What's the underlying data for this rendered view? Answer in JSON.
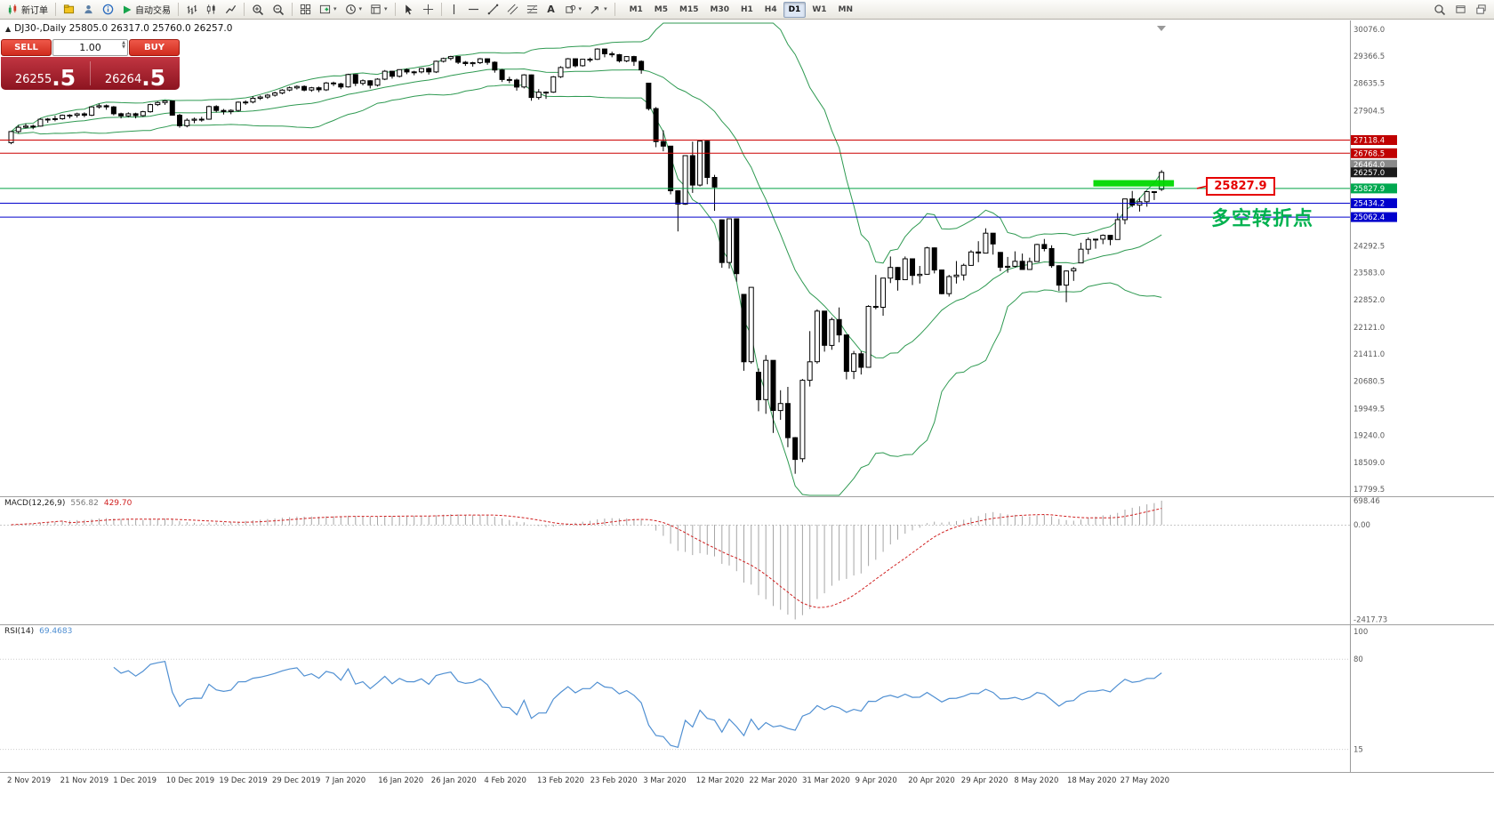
{
  "toolbar": {
    "new_order_label": "新订单",
    "auto_trading_label": "自动交易",
    "timeframes": [
      "M1",
      "M5",
      "M15",
      "M30",
      "H1",
      "H4",
      "D1",
      "W1",
      "MN"
    ],
    "active_timeframe": "D1"
  },
  "icons": {
    "caret": "▾",
    "text_tool": "A",
    "spin_up": "▲",
    "spin_down": "▼",
    "shift_marker": "▾"
  },
  "symbol_header": {
    "icon": "▲",
    "text": "DJ30-,Daily 25805.0 26317.0 25760.0 26257.0"
  },
  "trade_panel": {
    "sell_label": "SELL",
    "buy_label": "BUY",
    "volume": "1.00",
    "sell_price_main": "26255",
    "sell_price_big": ".5",
    "buy_price_main": "26264",
    "buy_price_big": ".5"
  },
  "annotations": {
    "price_callout": "25827.9",
    "pivot_label": "多空转折点"
  },
  "indicators": {
    "macd": {
      "label": "MACD(12,26,9)",
      "value_main": "556.82",
      "value_signal": "429.70",
      "axis_top": "698.46",
      "axis_zero": "0.00",
      "axis_bottom": "-2417.73"
    },
    "rsi": {
      "label": "RSI(14)",
      "value": "69.4683",
      "axis": [
        "100",
        "80",
        "15"
      ]
    }
  },
  "price_axis": {
    "regular": [
      30076.0,
      29366.5,
      28635.5,
      27904.5,
      24292.5,
      23583.0,
      22852.0,
      22121.0,
      21411.0,
      20680.5,
      19949.5,
      19240.0,
      18509.0,
      17799.5
    ],
    "tags": [
      {
        "text": "27118.4",
        "price": 27118.4,
        "bg": "#c00000",
        "fg": "#ffffff"
      },
      {
        "text": "26768.5",
        "price": 26768.5,
        "bg": "#c00000",
        "fg": "#ffffff"
      },
      {
        "text": "26464.0",
        "price": 26464.0,
        "bg": "#8a8a8a",
        "fg": "#ffffff"
      },
      {
        "text": "26257.0",
        "price": 26257.0,
        "bg": "#1a1a1a",
        "fg": "#ffffff"
      },
      {
        "text": "25827.9",
        "price": 25827.9,
        "bg": "#00a84f",
        "fg": "#ffffff"
      },
      {
        "text": "25434.2",
        "price": 25434.2,
        "bg": "#0000cc",
        "fg": "#ffffff"
      },
      {
        "text": "25062.4",
        "price": 25062.4,
        "bg": "#0000cc",
        "fg": "#ffffff"
      }
    ]
  },
  "levels": [
    {
      "price": 27118.4,
      "color": "#cc0000"
    },
    {
      "price": 26768.5,
      "color": "#cc0000"
    },
    {
      "price": 25827.9,
      "color": "#00a044"
    },
    {
      "price": 25434.2,
      "color": "#0000cc"
    },
    {
      "price": 25062.4,
      "color": "#0000cc"
    }
  ],
  "x_axis": {
    "labels": [
      "2 Nov 2019",
      "21 Nov 2019",
      "1 Dec 2019",
      "10 Dec 2019",
      "19 Dec 2019",
      "29 Dec 2019",
      "7 Jan 2020",
      "16 Jan 2020",
      "26 Jan 2020",
      "4 Feb 2020",
      "13 Feb 2020",
      "23 Feb 2020",
      "3 Mar 2020",
      "12 Mar 2020",
      "22 Mar 2020",
      "31 Mar 2020",
      "9 Apr 2020",
      "20 Apr 2020",
      "29 Apr 2020",
      "8 May 2020",
      "18 May 2020",
      "27 May 2020"
    ]
  },
  "chart_data": {
    "type": "candlestick",
    "symbol": "DJ30-",
    "timeframe": "Daily",
    "title": "DJ30-,Daily",
    "last_ohlc": {
      "open": 25805.0,
      "high": 26317.0,
      "low": 25760.0,
      "close": 26257.0
    },
    "y_range": [
      17633,
      30242
    ],
    "overlays": {
      "bollinger_period": 20,
      "bollinger_deviation": 2,
      "bollinger_color": "#2f9a52"
    },
    "support_zone": {
      "start_index": 148,
      "end_index": 159,
      "price_top": 26050,
      "price_bottom": 25880,
      "color": "#00d800"
    },
    "candles": [
      [
        27050,
        27360,
        27010,
        27347
      ],
      [
        27347,
        27520,
        27300,
        27462
      ],
      [
        27462,
        27560,
        27430,
        27493
      ],
      [
        27493,
        27530,
        27410,
        27492
      ],
      [
        27492,
        27700,
        27480,
        27675
      ],
      [
        27675,
        27710,
        27580,
        27681
      ],
      [
        27681,
        27770,
        27620,
        27691
      ],
      [
        27691,
        27800,
        27660,
        27783
      ],
      [
        27783,
        27810,
        27700,
        27784
      ],
      [
        27784,
        27850,
        27720,
        27821
      ],
      [
        27821,
        27860,
        27730,
        27782
      ],
      [
        27782,
        28010,
        27760,
        28005
      ],
      [
        28005,
        28090,
        27960,
        28036
      ],
      [
        28036,
        28070,
        27930,
        28004
      ],
      [
        28004,
        28030,
        27780,
        27822
      ],
      [
        27822,
        27850,
        27700,
        27766
      ],
      [
        27766,
        27860,
        27730,
        27822
      ],
      [
        27822,
        27850,
        27700,
        27772
      ],
      [
        27772,
        27900,
        27740,
        27877
      ],
      [
        27877,
        28090,
        27850,
        28066
      ],
      [
        28066,
        28150,
        28030,
        28121
      ],
      [
        28121,
        28180,
        28060,
        28164
      ],
      [
        28164,
        28170,
        27770,
        27783
      ],
      [
        27783,
        27820,
        27450,
        27503
      ],
      [
        27503,
        27700,
        27460,
        27650
      ],
      [
        27650,
        27720,
        27570,
        27678
      ],
      [
        27678,
        27740,
        27610,
        27677
      ],
      [
        27677,
        28040,
        27660,
        28015
      ],
      [
        28015,
        28050,
        27860,
        27910
      ],
      [
        27910,
        27950,
        27800,
        27882
      ],
      [
        27882,
        27940,
        27810,
        27912
      ],
      [
        27912,
        28150,
        27880,
        28132
      ],
      [
        28132,
        28180,
        28060,
        28135
      ],
      [
        28135,
        28290,
        28100,
        28235
      ],
      [
        28235,
        28310,
        28190,
        28268
      ],
      [
        28268,
        28350,
        28220,
        28318
      ],
      [
        28318,
        28410,
        28280,
        28377
      ],
      [
        28377,
        28480,
        28340,
        28455
      ],
      [
        28455,
        28550,
        28420,
        28515
      ],
      [
        28515,
        28580,
        28470,
        28552
      ],
      [
        28552,
        28580,
        28420,
        28455
      ],
      [
        28455,
        28540,
        28410,
        28515
      ],
      [
        28515,
        28550,
        28400,
        28462
      ],
      [
        28462,
        28670,
        28430,
        28645
      ],
      [
        28645,
        28680,
        28560,
        28621
      ],
      [
        28621,
        28650,
        28480,
        28538
      ],
      [
        28538,
        28890,
        28520,
        28869
      ],
      [
        28869,
        28880,
        28560,
        28635
      ],
      [
        28635,
        28740,
        28580,
        28703
      ],
      [
        28703,
        28720,
        28500,
        28584
      ],
      [
        28584,
        28770,
        28550,
        28745
      ],
      [
        28745,
        28990,
        28720,
        28957
      ],
      [
        28957,
        28970,
        28760,
        28823
      ],
      [
        28823,
        29010,
        28790,
        29001
      ],
      [
        29001,
        29030,
        28880,
        28940
      ],
      [
        28940,
        28970,
        28850,
        28939
      ],
      [
        28939,
        29050,
        28900,
        29030
      ],
      [
        29030,
        29060,
        28870,
        28939
      ],
      [
        28939,
        29240,
        28910,
        29223
      ],
      [
        29223,
        29320,
        29190,
        29297
      ],
      [
        29297,
        29370,
        29250,
        29348
      ],
      [
        29348,
        29360,
        29150,
        29196
      ],
      [
        29196,
        29230,
        29100,
        29160
      ],
      [
        29160,
        29210,
        29080,
        29186
      ],
      [
        29186,
        29310,
        29150,
        29290
      ],
      [
        29290,
        29300,
        29130,
        29196
      ],
      [
        29196,
        29220,
        28920,
        28990
      ],
      [
        28990,
        29020,
        28670,
        28736
      ],
      [
        28736,
        28810,
        28640,
        28723
      ],
      [
        28723,
        28760,
        28440,
        28535
      ],
      [
        28535,
        28880,
        28500,
        28859
      ],
      [
        28859,
        28870,
        28170,
        28257
      ],
      [
        28257,
        28480,
        28200,
        28399
      ],
      [
        28399,
        28420,
        28220,
        28400
      ],
      [
        28400,
        28830,
        28380,
        28808
      ],
      [
        28808,
        29090,
        28780,
        29056
      ],
      [
        29056,
        29310,
        29030,
        29290
      ],
      [
        29290,
        29300,
        29060,
        29103
      ],
      [
        29103,
        29290,
        29080,
        29277
      ],
      [
        29277,
        29320,
        29200,
        29276
      ],
      [
        29276,
        29570,
        29260,
        29551
      ],
      [
        29551,
        29560,
        29330,
        29423
      ],
      [
        29423,
        29480,
        29330,
        29398
      ],
      [
        29398,
        29420,
        29190,
        29232
      ],
      [
        29232,
        29360,
        29200,
        29348
      ],
      [
        29348,
        29370,
        29100,
        29220
      ],
      [
        29220,
        29250,
        28890,
        28992
      ],
      [
        28640,
        28640,
        27910,
        27961
      ],
      [
        27961,
        28000,
        26930,
        27081
      ],
      [
        27081,
        27380,
        26820,
        26958
      ],
      [
        26958,
        26960,
        25670,
        25767
      ],
      [
        25767,
        25780,
        24680,
        25410
      ],
      [
        25410,
        26700,
        25390,
        26703
      ],
      [
        26703,
        27080,
        25710,
        25917
      ],
      [
        25917,
        27100,
        25880,
        27091
      ],
      [
        27091,
        27100,
        25940,
        26121
      ],
      [
        26121,
        26190,
        25230,
        25865
      ],
      [
        24990,
        25000,
        23710,
        23851
      ],
      [
        23851,
        25020,
        23690,
        25018
      ],
      [
        25018,
        25020,
        23340,
        23553
      ],
      [
        23000,
        23010,
        20960,
        21201
      ],
      [
        21201,
        23190,
        21150,
        23186
      ],
      [
        20920,
        21020,
        19880,
        20189
      ],
      [
        20189,
        21380,
        19810,
        21237
      ],
      [
        21237,
        21240,
        19300,
        19899
      ],
      [
        19899,
        20440,
        19650,
        20087
      ],
      [
        20087,
        20530,
        18920,
        19174
      ],
      [
        19174,
        19190,
        18210,
        18592
      ],
      [
        18610,
        20740,
        18520,
        20705
      ],
      [
        20705,
        22020,
        20540,
        21200
      ],
      [
        21200,
        22600,
        21150,
        22552
      ],
      [
        22552,
        22560,
        21470,
        21637
      ],
      [
        21637,
        22380,
        21520,
        22327
      ],
      [
        22327,
        22650,
        21720,
        21917
      ],
      [
        21917,
        21920,
        20730,
        20944
      ],
      [
        20944,
        21490,
        20740,
        21413
      ],
      [
        21413,
        21480,
        20860,
        21053
      ],
      [
        21053,
        22710,
        21060,
        22680
      ],
      [
        22680,
        23520,
        22600,
        22654
      ],
      [
        22654,
        23440,
        22430,
        23434
      ],
      [
        23434,
        24010,
        23300,
        23719
      ],
      [
        23719,
        23730,
        23100,
        23391
      ],
      [
        23391,
        24010,
        23400,
        23949
      ],
      [
        23949,
        23950,
        23250,
        23504
      ],
      [
        23504,
        23760,
        23290,
        23537
      ],
      [
        23537,
        24270,
        23530,
        24242
      ],
      [
        24242,
        24250,
        23560,
        23650
      ],
      [
        23650,
        23660,
        23000,
        23018
      ],
      [
        23018,
        23520,
        22940,
        23475
      ],
      [
        23475,
        23890,
        23290,
        23515
      ],
      [
        23515,
        23820,
        23370,
        23775
      ],
      [
        23775,
        24180,
        23770,
        24133
      ],
      [
        24133,
        24420,
        23860,
        24102
      ],
      [
        24102,
        24765,
        24100,
        24634
      ],
      [
        24634,
        24640,
        24060,
        24346
      ],
      [
        24120,
        24130,
        23620,
        23724
      ],
      [
        23724,
        24000,
        23580,
        23749
      ],
      [
        23749,
        24150,
        23720,
        23883
      ],
      [
        23883,
        24090,
        23660,
        23665
      ],
      [
        23665,
        23980,
        23660,
        23876
      ],
      [
        23876,
        24350,
        23870,
        24331
      ],
      [
        24331,
        24480,
        24150,
        24222
      ],
      [
        24222,
        24310,
        23710,
        23765
      ],
      [
        23765,
        23780,
        23090,
        23248
      ],
      [
        23248,
        23640,
        22790,
        23625
      ],
      [
        23625,
        23730,
        23360,
        23685
      ],
      [
        23840,
        24380,
        23830,
        24206
      ],
      [
        24206,
        24520,
        24070,
        24465
      ],
      [
        24465,
        24480,
        24220,
        24474
      ],
      [
        24474,
        24600,
        24340,
        24576
      ],
      [
        24576,
        24580,
        24310,
        24465
      ],
      [
        24465,
        25170,
        24470,
        24995
      ],
      [
        24995,
        25550,
        24870,
        25548
      ],
      [
        25548,
        25760,
        25330,
        25383
      ],
      [
        25383,
        25580,
        25210,
        25475
      ],
      [
        25475,
        25760,
        25340,
        25743
      ],
      [
        25743,
        25750,
        25520,
        25743
      ],
      [
        25805,
        26317,
        25760,
        26257
      ]
    ],
    "sub_charts": [
      {
        "type": "macd",
        "params": [
          12,
          26,
          9
        ],
        "shown_main": 556.82,
        "shown_signal": 429.7,
        "axis_labels": [
          698.46,
          0.0,
          -2417.73
        ],
        "hist_color": "#a0a0a0",
        "signal_color": "#d02020"
      },
      {
        "type": "rsi",
        "params": [
          14
        ],
        "shown_value": 69.4683,
        "axis_labels": [
          100,
          80,
          15
        ],
        "line_color": "#4f8fd2"
      }
    ]
  }
}
